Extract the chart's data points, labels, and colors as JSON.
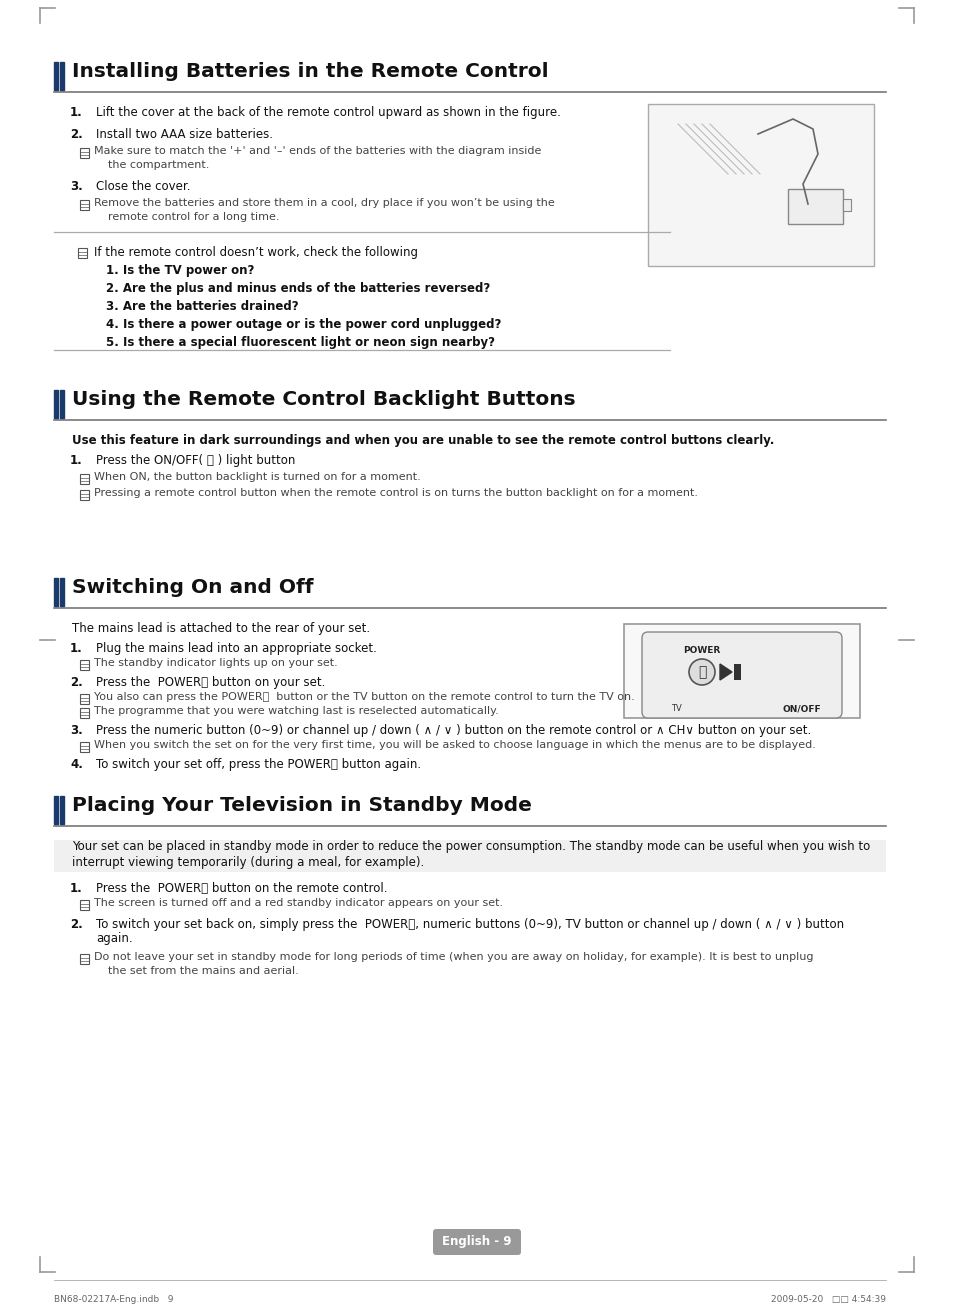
{
  "bg_color": "#ffffff",
  "section1_title": "Installing Batteries in the Remote Control",
  "section2_title": "Using the Remote Control Backlight Buttons",
  "section3_title": "Switching On and Off",
  "section4_title": "Placing Your Television in Standby Mode",
  "section2_bold": "Use this feature in dark surroundings and when you are unable to see the remote control buttons clearly.",
  "section3_intro": "The mains lead is attached to the rear of your set.",
  "section4_intro_1": "Your set can be placed in standby mode in order to reduce the power consumption. The standby mode can be useful when you wish to",
  "section4_intro_2": "interrupt viewing temporarily (during a meal, for example).",
  "footer_left": "BN68-02217A-Eng.indb   9",
  "footer_right": "2009-05-20   □□ 4:54:39",
  "page_num": "English - 9",
  "accent_color": "#1a3a6b",
  "line_color": "#888888",
  "text_dark": "#111111",
  "text_gray": "#444444",
  "note_icon_color": "#555555",
  "badge_color": "#999999"
}
